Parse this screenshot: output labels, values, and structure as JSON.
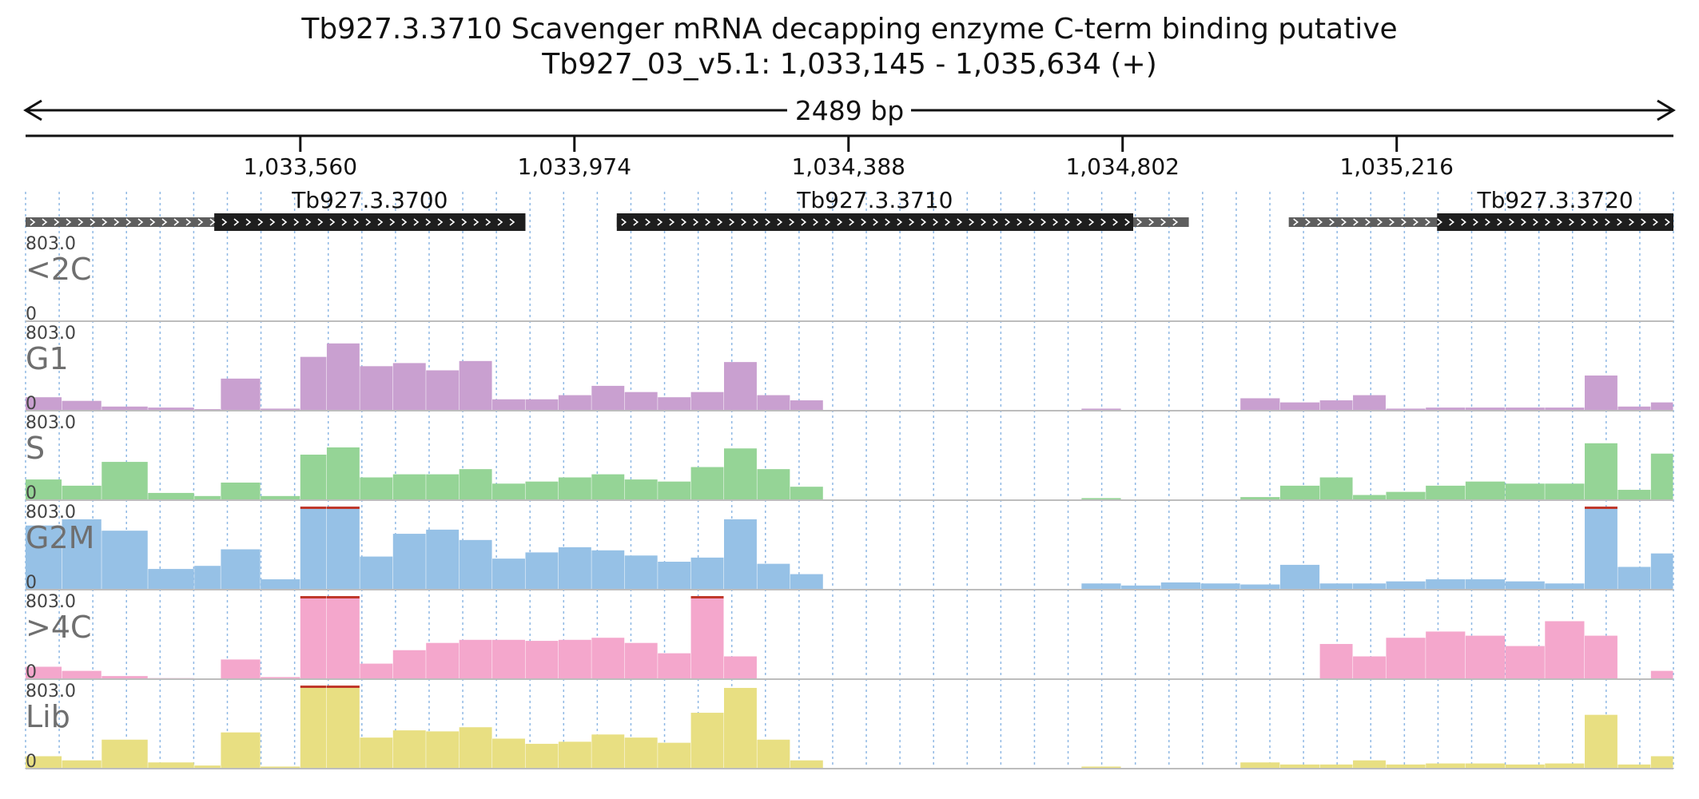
{
  "header": {
    "title": "Tb927.3.3710  Scavenger mRNA decapping enzyme C-term binding  putative",
    "subtitle": "Tb927_03_v5.1: 1,033,145 - 1,035,634 (+)",
    "span_label": "2489 bp"
  },
  "chart_data": {
    "type": "bar",
    "region": {
      "chrom": "Tb927_03_v5.1",
      "start": 1033145,
      "end": 1035634,
      "strand": "+"
    },
    "ruler_ticks": [
      {
        "pos": 1033560,
        "label": "1,033,560"
      },
      {
        "pos": 1033974,
        "label": "1,033,974"
      },
      {
        "pos": 1034388,
        "label": "1,034,388"
      },
      {
        "pos": 1034802,
        "label": "1,034,802"
      },
      {
        "pos": 1035216,
        "label": "1,035,216"
      }
    ],
    "genes": [
      {
        "name": "Tb927.3.3700",
        "start": 1033145,
        "end": 1033900,
        "cds_start": 1033430,
        "cds_end": 1033900
      },
      {
        "name": "Tb927.3.3710",
        "start": 1034038,
        "end": 1034902,
        "cds_start": 1034038,
        "cds_end": 1034818
      },
      {
        "name": "Tb927.3.3720",
        "start": 1035053,
        "end": 1035634,
        "cds_start": 1035277,
        "cds_end": 1035634
      }
    ],
    "y_max_label": "803.0",
    "y_min_label": "0",
    "ylim": [
      0,
      803
    ],
    "bin_starts": [
      1033145,
      1033200,
      1033260,
      1033330,
      1033400,
      1033440,
      1033500,
      1033560,
      1033600,
      1033650,
      1033700,
      1033750,
      1033800,
      1033850,
      1033900,
      1033950,
      1034000,
      1034050,
      1034100,
      1034150,
      1034200,
      1034250,
      1034300,
      1034350,
      1034400,
      1034460,
      1034500,
      1034560,
      1034620,
      1034680,
      1034740,
      1034800,
      1034860,
      1034920,
      1034980,
      1035040,
      1035100,
      1035150,
      1035200,
      1035260,
      1035320,
      1035380,
      1035440,
      1035500,
      1035550,
      1035600
    ],
    "bin_end": 1035634,
    "series": [
      {
        "name": "<2C",
        "color": "#9a9a9a",
        "values": [
          0,
          0,
          0,
          0,
          0,
          0,
          0,
          0,
          0,
          0,
          0,
          0,
          0,
          0,
          0,
          0,
          0,
          0,
          0,
          0,
          0,
          0,
          0,
          0,
          0,
          0,
          0,
          0,
          0,
          0,
          0,
          0,
          0,
          0,
          0,
          0,
          0,
          0,
          0,
          0,
          0,
          0,
          0,
          0,
          0,
          0
        ]
      },
      {
        "name": "G1",
        "color": "#c9a0d0",
        "values": [
          130,
          95,
          40,
          30,
          15,
          310,
          20,
          520,
          650,
          430,
          460,
          390,
          480,
          110,
          110,
          150,
          240,
          180,
          130,
          180,
          470,
          150,
          100,
          0,
          0,
          0,
          0,
          0,
          0,
          0,
          20,
          0,
          0,
          0,
          120,
          80,
          100,
          150,
          20,
          30,
          30,
          30,
          30,
          340,
          40,
          80
        ]
      },
      {
        "name": "S",
        "color": "#95d496",
        "values": [
          200,
          140,
          370,
          70,
          40,
          170,
          40,
          440,
          510,
          220,
          250,
          250,
          300,
          160,
          180,
          220,
          250,
          200,
          180,
          320,
          500,
          300,
          130,
          0,
          0,
          0,
          0,
          0,
          0,
          0,
          20,
          0,
          0,
          0,
          30,
          140,
          220,
          50,
          80,
          140,
          180,
          160,
          160,
          550,
          100,
          450
        ]
      },
      {
        "name": "G2M",
        "color": "#96c1e6",
        "values": [
          620,
          680,
          570,
          200,
          230,
          390,
          100,
          803,
          803,
          320,
          540,
          580,
          480,
          300,
          360,
          410,
          380,
          330,
          270,
          310,
          680,
          250,
          150,
          0,
          0,
          0,
          0,
          0,
          0,
          0,
          60,
          40,
          70,
          60,
          50,
          240,
          60,
          60,
          80,
          100,
          100,
          80,
          60,
          803,
          220,
          350
        ]
      },
      {
        "name": ">4C",
        "color": "#f4a7cc",
        "values": [
          120,
          80,
          30,
          10,
          0,
          190,
          20,
          803,
          803,
          150,
          280,
          350,
          380,
          380,
          370,
          380,
          400,
          350,
          250,
          803,
          220,
          0,
          0,
          0,
          0,
          0,
          0,
          0,
          0,
          0,
          0,
          0,
          0,
          0,
          0,
          0,
          340,
          220,
          400,
          460,
          420,
          320,
          560,
          420,
          0,
          80
        ]
      },
      {
        "name": "Lib",
        "color": "#e8df82",
        "values": [
          120,
          80,
          280,
          60,
          30,
          350,
          20,
          803,
          803,
          300,
          370,
          360,
          400,
          290,
          240,
          260,
          330,
          300,
          250,
          540,
          780,
          280,
          80,
          0,
          0,
          0,
          0,
          0,
          0,
          0,
          20,
          0,
          0,
          0,
          60,
          40,
          40,
          80,
          40,
          50,
          50,
          40,
          50,
          520,
          40,
          120
        ]
      }
    ]
  }
}
